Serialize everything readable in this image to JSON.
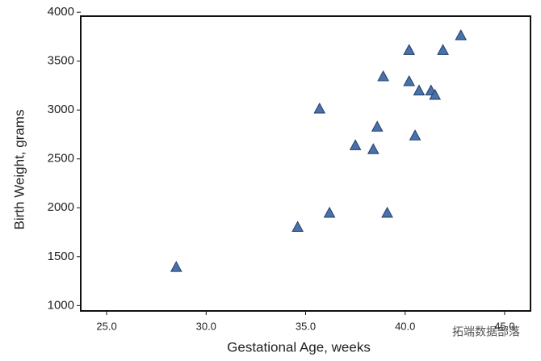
{
  "chart_data": {
    "type": "scatter",
    "x_label": "Gestational Age, weeks",
    "y_label": "Birth Weight, grams",
    "watermark": "拓端数据部落",
    "series": [
      {
        "color": "#4a72a8",
        "x": [
          28.5,
          34.6,
          35.7,
          36.2,
          37.5,
          38.4,
          38.6,
          38.9,
          39.1,
          40.2,
          40.2,
          40.5,
          40.7,
          41.3,
          41.5,
          41.9,
          42.8
        ],
        "values": [
          1390,
          1800,
          3010,
          1945,
          2635,
          2595,
          2825,
          3340,
          1945,
          3610,
          3290,
          2735,
          3195,
          3195,
          3150,
          3610,
          3760
        ]
      }
    ],
    "xlim": [
      23.7,
      46.3
    ],
    "xticks": [
      {
        "value": 25,
        "label": "25.0"
      },
      {
        "value": 30,
        "label": "30.0"
      },
      {
        "value": 35,
        "label": "35.0"
      },
      {
        "value": 40,
        "label": "40.0"
      },
      {
        "value": 45,
        "label": "45.0"
      }
    ],
    "ylim": [
      945,
      3960
    ],
    "yticks": [
      1000,
      1500,
      2000,
      2500,
      3000,
      3500,
      4000
    ]
  }
}
